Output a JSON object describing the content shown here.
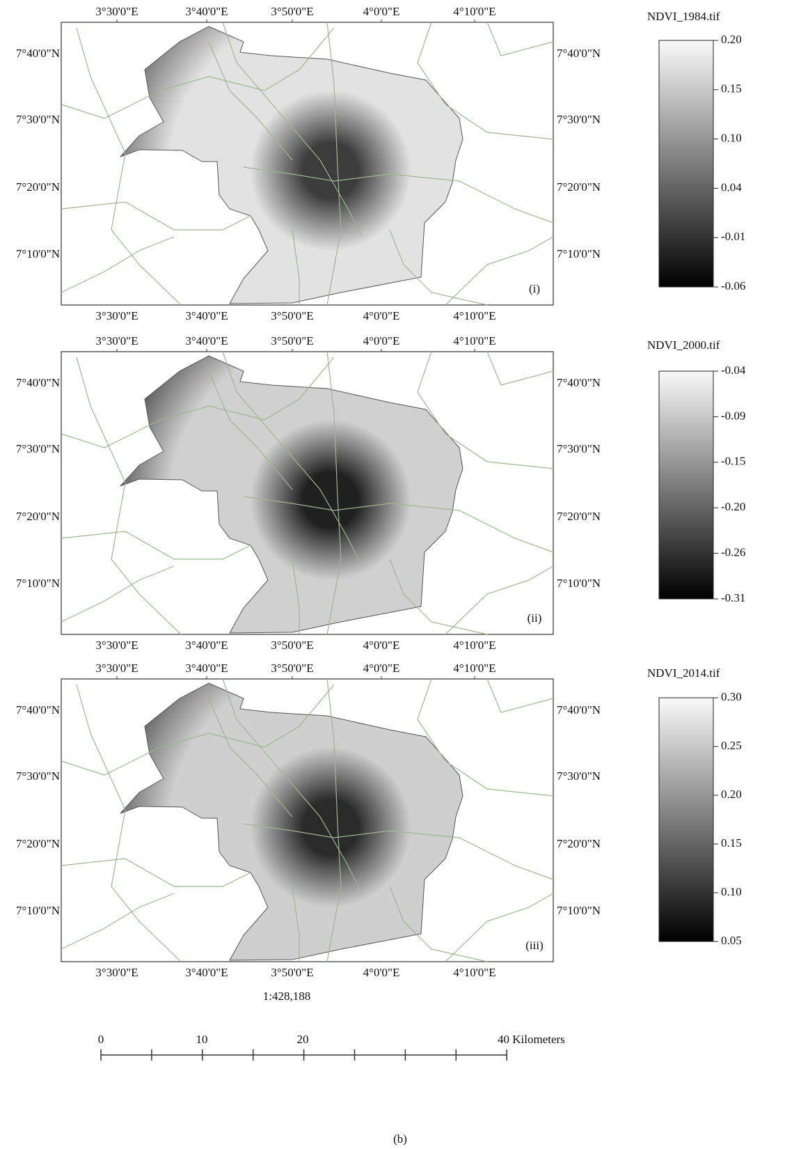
{
  "panels": [
    {
      "top_labels": [
        "3°30'0\"E",
        "3°40'0\"E",
        "3°50'0\"E",
        "4°0'0\"E",
        "4°10'0\"E"
      ],
      "bottom_labels": [
        "3°30'0\"E",
        "3°40'0\"E",
        "3°50'0\"E",
        "4°0'0\"E",
        "4°10'0\"E"
      ],
      "left_labels": [
        "7°40'0\"N",
        "7°30'0\"N",
        "7°20'0\"N",
        "7°10'0\"N"
      ],
      "right_labels": [
        "7°40'0\"N",
        "7°30'0\"N",
        "7°20'0\"N",
        "7°10'0\"N"
      ],
      "tag": "(i)",
      "legend_title": "NDVI_1984.tif",
      "legend_ticks": [
        "0.20",
        "0.15",
        "0.10",
        "0.04",
        "-0.01",
        "-0.06"
      ]
    },
    {
      "top_labels": [
        "3°30'0\"E",
        "3°40'0\"E",
        "3°50'0\"E",
        "4°0'0\"E",
        "4°10'0\"E"
      ],
      "bottom_labels": [
        "3°30'0\"E",
        "3°40'0\"E",
        "3°50'0\"E",
        "4°0'0\"E",
        "4°10'0\"E"
      ],
      "left_labels": [
        "7°40'0\"N",
        "7°30'0\"N",
        "7°20'0\"N",
        "7°10'0\"N"
      ],
      "right_labels": [
        "7°40'0\"N",
        "7°30'0\"N",
        "7°20'0\"N",
        "7°10'0\"N"
      ],
      "tag": "(ii)",
      "legend_title": "NDVI_2000.tif",
      "legend_ticks": [
        "-0.04",
        "-0.09",
        "-0.15",
        "-0.20",
        "-0.26",
        "-0.31"
      ]
    },
    {
      "top_labels": [
        "3°30'0\"E",
        "3°40'0\"E",
        "3°50'0\"E",
        "4°0'0\"E",
        "4°10'0\"E"
      ],
      "bottom_labels": [
        "3°30'0\"E",
        "3°40'0\"E",
        "3°50'0\"E",
        "4°0'0\"E",
        "4°10'0\"E"
      ],
      "left_labels": [
        "7°40'0\"N",
        "7°30'0\"N",
        "7°20'0\"N",
        "7°10'0\"N"
      ],
      "right_labels": [
        "7°40'0\"N",
        "7°30'0\"N",
        "7°20'0\"N",
        "7°10'0\"N"
      ],
      "tag": "(iii)",
      "legend_title": "NDVI_2014.tif",
      "legend_ticks": [
        "0.30",
        "0.25",
        "0.20",
        "0.15",
        "0.10",
        "0.05"
      ]
    }
  ],
  "scale_ratio": "1:428,188",
  "scale_bar_labels": [
    "0",
    "10",
    "20",
    "40 Kilometers"
  ],
  "caption": "(b)"
}
